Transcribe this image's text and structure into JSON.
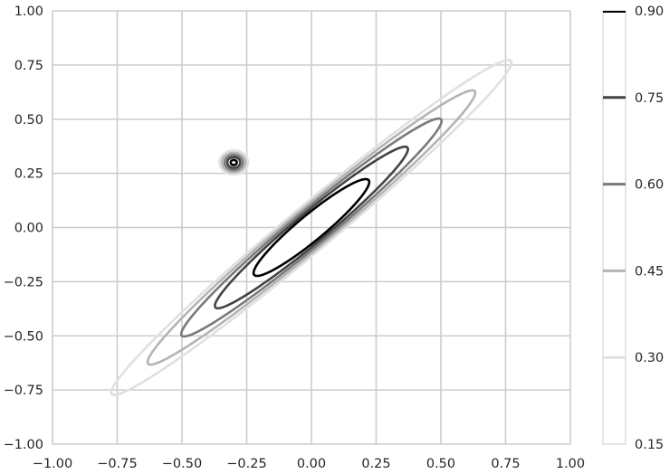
{
  "chart_data": {
    "type": "contour",
    "xlim": [
      -1.0,
      1.0
    ],
    "ylim": [
      -1.0,
      1.0
    ],
    "x_ticks": [
      -1.0,
      -0.75,
      -0.5,
      -0.25,
      0.0,
      0.25,
      0.5,
      0.75,
      1.0
    ],
    "y_ticks": [
      -1.0,
      -0.75,
      -0.5,
      -0.25,
      0.0,
      0.25,
      0.5,
      0.75,
      1.0
    ],
    "x_tick_labels": [
      "−1.00",
      "−0.75",
      "−0.50",
      "−0.25",
      "0.00",
      "0.25",
      "0.50",
      "0.75",
      "1.00"
    ],
    "y_tick_labels": [
      "−1.00",
      "−0.75",
      "−0.50",
      "−0.25",
      "0.00",
      "0.25",
      "0.50",
      "0.75",
      "1.00"
    ],
    "grid": true,
    "levels": [
      0.3,
      0.45,
      0.6,
      0.75,
      0.9
    ],
    "level_colors": [
      "#e0e0e0",
      "#b4b4b4",
      "#7a7a7a",
      "#434343",
      "#000000"
    ],
    "colorbar": {
      "range": [
        0.15,
        0.9
      ],
      "ticks": [
        0.3,
        0.45,
        0.6,
        0.75,
        0.9
      ],
      "tick_labels": [
        "0.30",
        "0.45",
        "0.60",
        "0.75",
        "0.90"
      ],
      "bottom_label": "0.15"
    },
    "elongated_contours": [
      {
        "level": 0.3,
        "x_range": [
          -0.77,
          0.77
        ],
        "half_width": 0.095
      },
      {
        "level": 0.45,
        "x_range": [
          -0.63,
          0.63
        ],
        "half_width": 0.085
      },
      {
        "level": 0.6,
        "x_range": [
          -0.5,
          0.5
        ],
        "half_width": 0.075
      },
      {
        "level": 0.75,
        "x_range": [
          -0.37,
          0.37
        ],
        "half_width": 0.065
      },
      {
        "level": 0.9,
        "x_range": [
          -0.22,
          0.22
        ],
        "half_width": 0.055
      }
    ],
    "small_peak": {
      "center": [
        -0.3,
        0.3
      ],
      "rings": [
        {
          "level": 0.3,
          "radius": 0.055
        },
        {
          "level": 0.45,
          "radius": 0.045
        },
        {
          "level": 0.6,
          "radius": 0.035
        },
        {
          "level": 0.75,
          "radius": 0.025
        },
        {
          "level": 0.9,
          "radius": 0.012
        }
      ]
    }
  }
}
